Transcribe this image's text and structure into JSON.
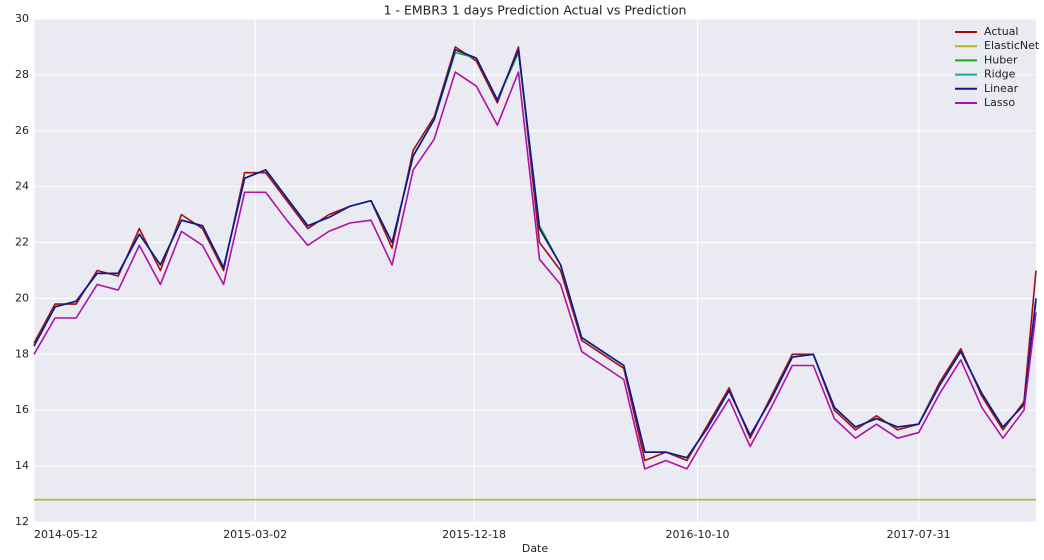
{
  "chart_data": {
    "type": "line",
    "title": "1 - EMBR3 1 days Prediction Actual vs Prediction",
    "x_label": "Date",
    "x": [
      "2014-05-12",
      "2014-06-09",
      "2014-07-07",
      "2014-08-04",
      "2014-09-01",
      "2014-09-29",
      "2014-10-27",
      "2014-11-24",
      "2014-12-22",
      "2015-01-19",
      "2015-02-16",
      "2015-03-16",
      "2015-04-13",
      "2015-05-11",
      "2015-06-08",
      "2015-07-06",
      "2015-08-03",
      "2015-08-31",
      "2015-09-28",
      "2015-10-26",
      "2015-11-23",
      "2015-12-21",
      "2016-01-18",
      "2016-02-15",
      "2016-03-14",
      "2016-04-11",
      "2016-05-09",
      "2016-06-06",
      "2016-07-04",
      "2016-08-01",
      "2016-08-29",
      "2016-09-26",
      "2016-10-24",
      "2016-11-21",
      "2016-12-19",
      "2017-01-16",
      "2017-02-13",
      "2017-03-13",
      "2017-04-10",
      "2017-05-08",
      "2017-06-05",
      "2017-07-03",
      "2017-07-31",
      "2017-08-28",
      "2017-09-25",
      "2017-10-23",
      "2017-11-20",
      "2017-12-18",
      "2018-01-03"
    ],
    "series": [
      {
        "name": "Actual",
        "color": "#a80d0d",
        "values": [
          18.4,
          19.8,
          19.8,
          21.0,
          20.8,
          22.5,
          21.0,
          23.0,
          22.5,
          21.0,
          24.5,
          24.5,
          23.5,
          22.5,
          23.0,
          23.3,
          23.5,
          21.8,
          25.3,
          26.5,
          29.0,
          28.5,
          27.0,
          29.0,
          22.0,
          21.0,
          18.5,
          18.0,
          17.5,
          14.2,
          14.5,
          14.2,
          15.5,
          16.8,
          15.0,
          16.5,
          18.0,
          18.0,
          16.0,
          15.3,
          15.8,
          15.3,
          15.5,
          17.0,
          18.2,
          16.5,
          15.3,
          16.3,
          21.0
        ]
      },
      {
        "name": "ElasticNet",
        "color": "#b5b52a",
        "values": [
          12.8,
          12.8,
          12.8,
          12.8,
          12.8,
          12.8,
          12.8,
          12.8,
          12.8,
          12.8,
          12.8,
          12.8,
          12.8,
          12.8,
          12.8,
          12.8,
          12.8,
          12.8,
          12.8,
          12.8,
          12.8,
          12.8,
          12.8,
          12.8,
          12.8,
          12.8,
          12.8,
          12.8,
          12.8,
          12.8,
          12.8,
          12.8,
          12.8,
          12.8,
          12.8,
          12.8,
          12.8,
          12.8,
          12.8,
          12.8,
          12.8,
          12.8,
          12.8,
          12.8,
          12.8,
          12.8,
          12.8,
          12.8,
          12.8
        ]
      },
      {
        "name": "Huber",
        "color": "#1fa51f",
        "values": [
          18.3,
          19.7,
          19.9,
          20.9,
          20.9,
          22.3,
          21.2,
          22.8,
          22.6,
          21.1,
          24.3,
          24.6,
          23.6,
          22.6,
          22.9,
          23.3,
          23.5,
          22.0,
          25.1,
          26.4,
          28.8,
          28.6,
          27.1,
          28.8,
          22.6,
          21.2,
          18.6,
          18.1,
          17.6,
          14.5,
          14.5,
          14.3,
          15.4,
          16.7,
          15.1,
          16.4,
          17.9,
          18.0,
          16.1,
          15.4,
          15.7,
          15.4,
          15.5,
          16.9,
          18.1,
          16.6,
          15.4,
          16.2,
          19.9
        ]
      },
      {
        "name": "Ridge",
        "color": "#1aa8a8",
        "values": [
          18.3,
          19.7,
          19.9,
          20.9,
          20.9,
          22.3,
          21.2,
          22.8,
          22.6,
          21.1,
          24.3,
          24.6,
          23.6,
          22.6,
          22.9,
          23.3,
          23.5,
          22.0,
          25.1,
          26.4,
          28.9,
          28.6,
          27.1,
          28.9,
          22.5,
          21.2,
          18.6,
          18.1,
          17.6,
          14.5,
          14.5,
          14.3,
          15.4,
          16.7,
          15.1,
          16.4,
          17.9,
          18.0,
          16.1,
          15.4,
          15.7,
          15.4,
          15.5,
          16.9,
          18.1,
          16.6,
          15.4,
          16.2,
          20.0
        ]
      },
      {
        "name": "Linear",
        "color": "#14148c",
        "values": [
          18.3,
          19.7,
          19.9,
          20.9,
          20.9,
          22.3,
          21.2,
          22.8,
          22.6,
          21.1,
          24.3,
          24.6,
          23.6,
          22.6,
          22.9,
          23.3,
          23.5,
          22.0,
          25.1,
          26.4,
          28.9,
          28.6,
          27.1,
          28.9,
          22.5,
          21.2,
          18.6,
          18.1,
          17.6,
          14.5,
          14.5,
          14.3,
          15.4,
          16.7,
          15.1,
          16.4,
          17.9,
          18.0,
          16.1,
          15.4,
          15.7,
          15.4,
          15.5,
          16.9,
          18.1,
          16.6,
          15.4,
          16.2,
          20.0
        ]
      },
      {
        "name": "Lasso",
        "color": "#b010a8",
        "values": [
          18.0,
          19.3,
          19.3,
          20.5,
          20.3,
          21.9,
          20.5,
          22.4,
          21.9,
          20.5,
          23.8,
          23.8,
          22.8,
          21.9,
          22.4,
          22.7,
          22.8,
          21.2,
          24.6,
          25.7,
          28.1,
          27.6,
          26.2,
          28.1,
          21.4,
          20.5,
          18.1,
          17.6,
          17.1,
          13.9,
          14.2,
          13.9,
          15.2,
          16.4,
          14.7,
          16.1,
          17.6,
          17.6,
          15.7,
          15.0,
          15.5,
          15.0,
          15.2,
          16.6,
          17.8,
          16.1,
          15.0,
          16.0,
          19.5
        ]
      }
    ],
    "xlim": [
      "2014-05-12",
      "2018-01-03"
    ],
    "xticks": [
      "2014-05-12",
      "2015-03-02",
      "2015-12-18",
      "2016-10-10",
      "2017-07-31"
    ],
    "ylim": [
      12,
      30
    ],
    "yticks": [
      12,
      14,
      16,
      18,
      20,
      22,
      24,
      26,
      28,
      30
    ],
    "grid": true,
    "legend": "upper right"
  }
}
